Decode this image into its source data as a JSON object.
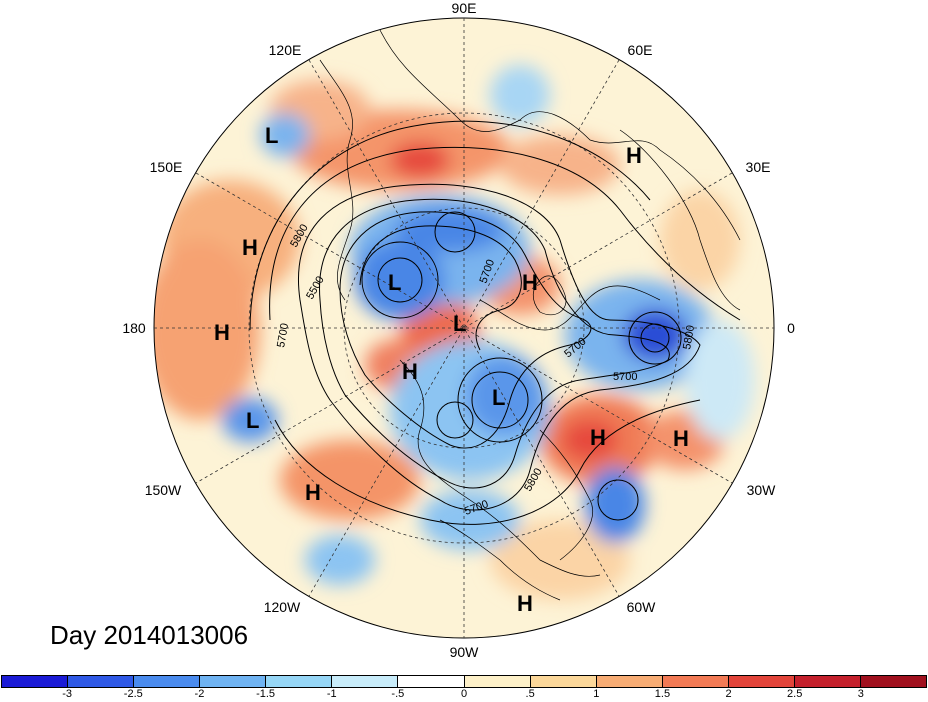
{
  "map": {
    "longitude_labels": [
      "90E",
      "60E",
      "120E",
      "150E",
      "30E",
      "180",
      "0",
      "150W",
      "30W",
      "120W",
      "60W",
      "90W"
    ],
    "contour_labels": [
      "5800",
      "5500",
      "5700",
      "5700",
      "5800",
      "5700",
      "5800",
      "5700",
      "5700"
    ],
    "pressure_systems": [
      "L",
      "H",
      "H",
      "L",
      "H",
      "H",
      "L",
      "H",
      "L",
      "L",
      "H",
      "H",
      "H",
      "H"
    ],
    "date_label": "Day 2014013006",
    "colors": {
      "strong_negative": "#2b4ed6",
      "negative": "#6ea7ec",
      "weak_negative": "#bfe4f6",
      "neutral": "#fdf7e0",
      "weak_positive": "#fbe0b0",
      "positive": "#f4a070",
      "strong_positive": "#e2443a"
    }
  },
  "colorbar": {
    "ticks": [
      "-3",
      "-2.5",
      "-2",
      "-1.5",
      "-1",
      "-.5",
      "0",
      ".5",
      "1",
      "1.5",
      "2",
      "2.5",
      "3"
    ],
    "colors": [
      "#1b1bd6",
      "#2f59e6",
      "#4a8bee",
      "#6fb3f2",
      "#96d6f6",
      "#c8ecfa",
      "#ffffff",
      "#fdf0c8",
      "#fbd79a",
      "#f7ac74",
      "#f27a55",
      "#e2443a",
      "#c4202c",
      "#a0101e"
    ]
  }
}
